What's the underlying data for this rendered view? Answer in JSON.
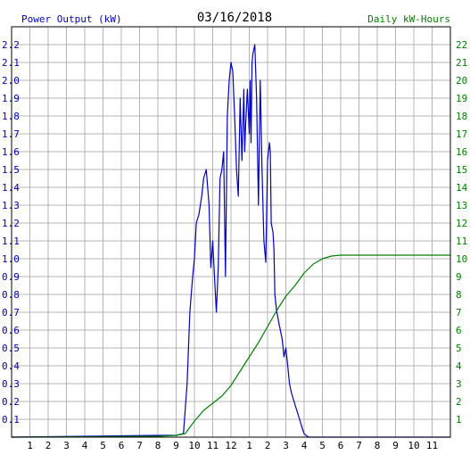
{
  "chart_data": {
    "type": "line",
    "title": "03/16/2018",
    "left_axis_label": "Power Output (kW)",
    "right_axis_label": "Daily kW-Hours",
    "x_ticks": [
      "1",
      "2",
      "3",
      "4",
      "5",
      "6",
      "7",
      "8",
      "9",
      "10",
      "11",
      "12",
      "1",
      "2",
      "3",
      "4",
      "5",
      "6",
      "7",
      "8",
      "9",
      "10",
      "11"
    ],
    "x_range_hours": [
      0,
      24
    ],
    "left_ylim": [
      0,
      2.3
    ],
    "right_ylim": [
      0,
      23
    ],
    "left_ticks": [
      "0.1",
      "0.2",
      "0.3",
      "0.4",
      "0.5",
      "0.6",
      "0.7",
      "0.8",
      "0.9",
      "1.0",
      "1.1",
      "1.2",
      "1.3",
      "1.4",
      "1.5",
      "1.6",
      "1.7",
      "1.8",
      "1.9",
      "2.0",
      "2.1",
      "2.2"
    ],
    "right_ticks": [
      "1",
      "2",
      "3",
      "4",
      "5",
      "6",
      "7",
      "8",
      "9",
      "10",
      "11",
      "12",
      "13",
      "14",
      "15",
      "16",
      "17",
      "18",
      "19",
      "20",
      "21",
      "22"
    ],
    "grid": true,
    "colors": {
      "power": "#0000c0",
      "energy": "#008000",
      "grid": "#b4b4b4",
      "axis": "#000000",
      "title": "#000000"
    },
    "series": [
      {
        "key": "power",
        "axis": "left",
        "x": [
          0,
          8.0,
          9.0,
          9.4,
          9.6,
          9.75,
          9.9,
          10.0,
          10.1,
          10.25,
          10.4,
          10.5,
          10.65,
          10.8,
          10.9,
          11.0,
          11.1,
          11.2,
          11.3,
          11.4,
          11.5,
          11.6,
          11.7,
          11.8,
          11.9,
          12.0,
          12.1,
          12.2,
          12.3,
          12.4,
          12.5,
          12.6,
          12.7,
          12.75,
          12.8,
          12.9,
          13.0,
          13.05,
          13.1,
          13.15,
          13.2,
          13.3,
          13.4,
          13.5,
          13.6,
          13.7,
          13.8,
          13.9,
          14.0,
          14.1,
          14.15,
          14.2,
          14.3,
          14.35,
          14.4,
          14.5,
          14.55,
          14.6,
          14.7,
          14.8,
          14.9,
          15.0,
          15.1,
          15.2,
          15.3,
          15.45,
          15.6,
          15.75,
          15.9,
          16.0,
          16.1,
          16.25,
          16.4,
          16.6,
          16.8,
          17.0,
          17.2,
          17.5,
          17.8,
          18.0,
          18.3,
          18.6,
          18.8,
          19.0,
          19.5,
          24
        ],
        "y": [
          0,
          0.01,
          0.01,
          0.02,
          0.3,
          0.7,
          0.9,
          1.0,
          1.2,
          1.25,
          1.35,
          1.45,
          1.5,
          1.3,
          0.95,
          1.1,
          0.9,
          0.7,
          0.95,
          1.45,
          1.5,
          1.6,
          0.9,
          1.8,
          2.0,
          2.1,
          2.05,
          1.8,
          1.5,
          1.35,
          1.9,
          1.55,
          1.95,
          1.6,
          1.75,
          1.95,
          1.7,
          2.0,
          1.65,
          2.1,
          2.15,
          2.2,
          1.9,
          1.3,
          2.0,
          1.5,
          1.1,
          0.98,
          1.55,
          1.65,
          1.6,
          1.2,
          1.15,
          1.05,
          0.8,
          0.7,
          0.68,
          0.65,
          0.6,
          0.55,
          0.45,
          0.5,
          0.4,
          0.3,
          0.25,
          0.2,
          0.15,
          0.1,
          0.05,
          0.02,
          0.01,
          0.0,
          0,
          0,
          0,
          0,
          0,
          0,
          0,
          0,
          0,
          0,
          0,
          0,
          0,
          0
        ]
      },
      {
        "key": "energy",
        "axis": "right",
        "x": [
          0,
          8.0,
          9.0,
          9.5,
          10.0,
          10.5,
          11.0,
          11.5,
          12.0,
          12.5,
          13.0,
          13.5,
          14.0,
          14.5,
          15.0,
          15.5,
          16.0,
          16.5,
          17.0,
          17.5,
          18.0,
          18.5,
          19.0,
          24
        ],
        "y": [
          0,
          0.05,
          0.1,
          0.2,
          0.9,
          1.5,
          1.9,
          2.3,
          2.9,
          3.7,
          4.5,
          5.3,
          6.2,
          7.1,
          7.9,
          8.5,
          9.2,
          9.7,
          10.0,
          10.15,
          10.2,
          10.2,
          10.2,
          10.2
        ]
      }
    ]
  }
}
